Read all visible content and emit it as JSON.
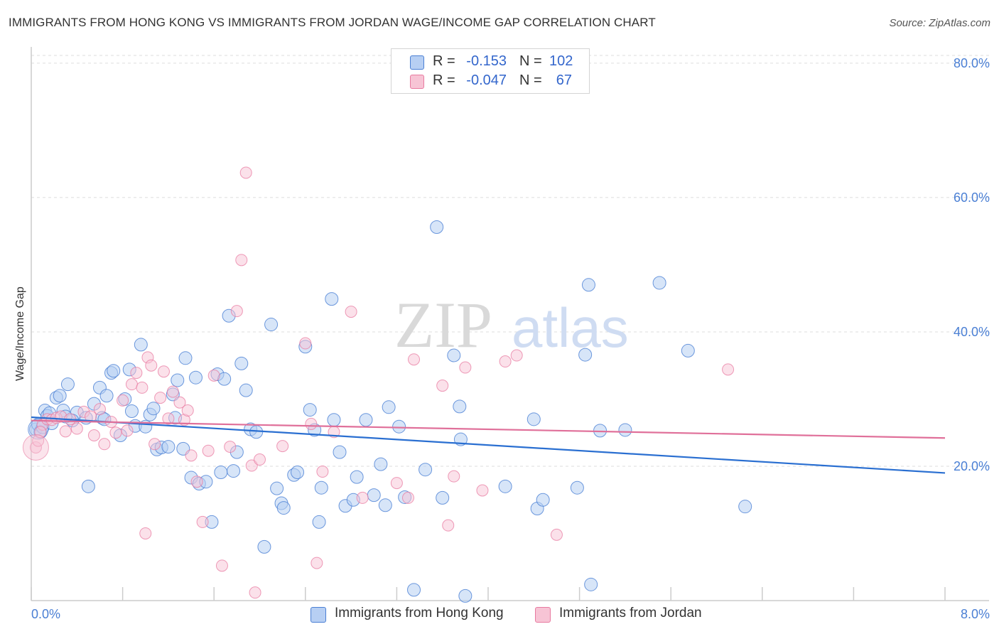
{
  "header": {
    "title": "IMMIGRANTS FROM HONG KONG VS IMMIGRANTS FROM JORDAN WAGE/INCOME GAP CORRELATION CHART",
    "source": "Source: ZipAtlas.com"
  },
  "watermark": {
    "zip": "ZIP",
    "atlas": "atlas"
  },
  "legend": {
    "rows": [
      {
        "r_label": "R =",
        "r_value": "-0.153",
        "n_label": "N =",
        "n_value": "102",
        "color": "#a9c6f0"
      },
      {
        "r_label": "R =",
        "r_value": "-0.047",
        "n_label": "N =",
        "n_value": "67",
        "color": "#f4b6cb"
      }
    ]
  },
  "bottom_legend": {
    "items": [
      {
        "label": "Immigrants from Hong Kong",
        "color": "#a9c6f0"
      },
      {
        "label": "Immigrants from Jordan",
        "color": "#f4b6cb"
      }
    ]
  },
  "chart_data": {
    "type": "scatter",
    "title": "IMMIGRANTS FROM HONG KONG VS IMMIGRANTS FROM JORDAN WAGE/INCOME GAP CORRELATION CHART",
    "xlabel": "",
    "ylabel": "Wage/Income Gap",
    "xlim": [
      0,
      8
    ],
    "ylim": [
      0,
      82
    ],
    "x_tick_labels": [
      "0.0%",
      "8.0%"
    ],
    "y_ticks": [
      20,
      40,
      60,
      80
    ],
    "y_tick_labels": [
      "20.0%",
      "40.0%",
      "60.0%",
      "80.0%"
    ],
    "grid": true,
    "legend_position": "top-center",
    "colors": {
      "hong_kong": "#4a7fd4",
      "hong_kong_fill": "#b7cff3",
      "jordan": "#e87aa0",
      "jordan_fill": "#f7c4d5",
      "trend_blue": "#2a6fd1",
      "trend_pink": "#e0709a"
    },
    "series": [
      {
        "name": "Immigrants from Hong Kong",
        "trend": {
          "x": [
            0,
            8
          ],
          "y": [
            27.3,
            19.0
          ]
        },
        "points": [
          [
            0.04,
            25.5
          ],
          [
            0.06,
            26.2
          ],
          [
            0.08,
            25.1
          ],
          [
            0.1,
            25.8
          ],
          [
            0.12,
            28.3
          ],
          [
            0.14,
            27.5
          ],
          [
            0.16,
            27.9
          ],
          [
            0.22,
            30.2
          ],
          [
            0.25,
            30.5
          ],
          [
            0.28,
            28.3
          ],
          [
            0.32,
            32.2
          ],
          [
            0.4,
            28.0
          ],
          [
            0.48,
            27.2
          ],
          [
            0.55,
            29.3
          ],
          [
            0.6,
            31.7
          ],
          [
            0.62,
            27.2
          ],
          [
            0.64,
            27.0
          ],
          [
            0.7,
            33.9
          ],
          [
            0.72,
            34.2
          ],
          [
            0.78,
            24.6
          ],
          [
            0.82,
            30.0
          ],
          [
            0.86,
            34.4
          ],
          [
            0.88,
            28.2
          ],
          [
            0.91,
            26.0
          ],
          [
            0.96,
            38.1
          ],
          [
            1.0,
            25.9
          ],
          [
            1.04,
            27.7
          ],
          [
            1.07,
            28.6
          ],
          [
            1.1,
            22.5
          ],
          [
            1.14,
            22.8
          ],
          [
            1.2,
            22.9
          ],
          [
            1.26,
            27.2
          ],
          [
            1.28,
            32.8
          ],
          [
            1.33,
            22.6
          ],
          [
            1.35,
            36.1
          ],
          [
            1.4,
            18.3
          ],
          [
            1.44,
            33.2
          ],
          [
            1.47,
            17.4
          ],
          [
            1.53,
            17.7
          ],
          [
            1.58,
            11.7
          ],
          [
            1.63,
            33.7
          ],
          [
            1.66,
            19.1
          ],
          [
            1.69,
            33.0
          ],
          [
            1.73,
            42.4
          ],
          [
            1.77,
            19.3
          ],
          [
            1.8,
            22.1
          ],
          [
            1.84,
            35.3
          ],
          [
            1.88,
            31.3
          ],
          [
            1.92,
            25.5
          ],
          [
            1.97,
            25.1
          ],
          [
            2.04,
            8.0
          ],
          [
            2.1,
            41.1
          ],
          [
            2.15,
            16.7
          ],
          [
            2.19,
            14.5
          ],
          [
            2.21,
            13.8
          ],
          [
            2.3,
            18.7
          ],
          [
            2.33,
            19.1
          ],
          [
            2.4,
            37.8
          ],
          [
            2.44,
            28.4
          ],
          [
            2.52,
            11.7
          ],
          [
            2.54,
            16.8
          ],
          [
            2.63,
            44.9
          ],
          [
            2.65,
            26.9
          ],
          [
            2.7,
            22.1
          ],
          [
            2.75,
            14.1
          ],
          [
            2.82,
            15.0
          ],
          [
            2.85,
            18.4
          ],
          [
            2.93,
            26.9
          ],
          [
            3.0,
            15.7
          ],
          [
            3.06,
            20.3
          ],
          [
            3.1,
            14.2
          ],
          [
            3.13,
            28.8
          ],
          [
            3.22,
            25.9
          ],
          [
            3.27,
            15.4
          ],
          [
            3.45,
            19.5
          ],
          [
            3.55,
            55.6
          ],
          [
            3.6,
            15.3
          ],
          [
            3.7,
            36.5
          ],
          [
            3.75,
            28.9
          ],
          [
            3.76,
            24.0
          ],
          [
            3.8,
            0.7
          ],
          [
            4.15,
            17.0
          ],
          [
            4.4,
            27.0
          ],
          [
            4.43,
            13.7
          ],
          [
            4.48,
            15.0
          ],
          [
            4.78,
            16.8
          ],
          [
            4.85,
            36.6
          ],
          [
            4.88,
            47.0
          ],
          [
            4.98,
            25.3
          ],
          [
            5.2,
            25.4
          ],
          [
            5.5,
            47.3
          ],
          [
            5.75,
            37.2
          ],
          [
            6.25,
            14.0
          ],
          [
            3.35,
            1.6
          ],
          [
            4.9,
            2.4
          ],
          [
            2.48,
            25.4
          ],
          [
            1.24,
            30.7
          ],
          [
            0.5,
            17.0
          ],
          [
            0.36,
            26.8
          ],
          [
            0.66,
            30.5
          ],
          [
            0.3,
            27.4
          ],
          [
            0.18,
            26.4
          ]
        ]
      },
      {
        "name": "Immigrants from Jordan",
        "trend": {
          "x": [
            0,
            8
          ],
          "y": [
            26.8,
            24.2
          ]
        },
        "points": [
          [
            0.04,
            22.8
          ],
          [
            0.06,
            23.8
          ],
          [
            0.1,
            26.2
          ],
          [
            0.14,
            27.0
          ],
          [
            0.18,
            26.9
          ],
          [
            0.22,
            27.2
          ],
          [
            0.26,
            27.4
          ],
          [
            0.3,
            25.2
          ],
          [
            0.34,
            27.0
          ],
          [
            0.4,
            25.6
          ],
          [
            0.46,
            28.1
          ],
          [
            0.52,
            27.4
          ],
          [
            0.55,
            24.6
          ],
          [
            0.6,
            28.5
          ],
          [
            0.64,
            23.3
          ],
          [
            0.7,
            26.6
          ],
          [
            0.74,
            25.0
          ],
          [
            0.8,
            29.8
          ],
          [
            0.84,
            25.3
          ],
          [
            0.88,
            32.2
          ],
          [
            0.92,
            33.9
          ],
          [
            0.97,
            31.7
          ],
          [
            1.0,
            10.0
          ],
          [
            1.02,
            36.2
          ],
          [
            1.05,
            35.0
          ],
          [
            1.08,
            23.3
          ],
          [
            1.13,
            30.2
          ],
          [
            1.16,
            34.1
          ],
          [
            1.2,
            27.1
          ],
          [
            1.24,
            31.1
          ],
          [
            1.3,
            29.5
          ],
          [
            1.34,
            26.9
          ],
          [
            1.37,
            28.3
          ],
          [
            1.4,
            21.6
          ],
          [
            1.45,
            17.7
          ],
          [
            1.5,
            11.7
          ],
          [
            1.55,
            22.3
          ],
          [
            1.6,
            33.5
          ],
          [
            1.67,
            5.2
          ],
          [
            1.74,
            22.9
          ],
          [
            1.8,
            43.1
          ],
          [
            1.84,
            50.7
          ],
          [
            1.88,
            63.7
          ],
          [
            1.93,
            20.1
          ],
          [
            1.96,
            1.2
          ],
          [
            2.0,
            21.0
          ],
          [
            2.2,
            23.0
          ],
          [
            2.4,
            38.3
          ],
          [
            2.5,
            5.6
          ],
          [
            2.55,
            19.2
          ],
          [
            2.65,
            25.1
          ],
          [
            2.8,
            43.0
          ],
          [
            2.9,
            15.3
          ],
          [
            3.2,
            17.5
          ],
          [
            3.3,
            15.3
          ],
          [
            3.35,
            35.9
          ],
          [
            3.6,
            32.0
          ],
          [
            3.65,
            11.2
          ],
          [
            3.7,
            18.5
          ],
          [
            3.8,
            34.7
          ],
          [
            3.95,
            16.4
          ],
          [
            4.15,
            35.6
          ],
          [
            4.25,
            36.5
          ],
          [
            4.6,
            9.8
          ],
          [
            6.1,
            34.4
          ],
          [
            0.08,
            25.1
          ],
          [
            2.45,
            26.3
          ]
        ]
      }
    ]
  }
}
